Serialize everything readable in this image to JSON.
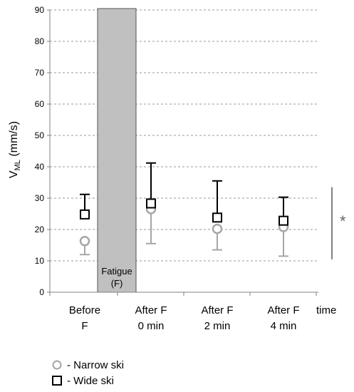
{
  "chart_data": {
    "type": "scatter",
    "ylabel_main": "V",
    "ylabel_sub": "ML",
    "ylabel_unit": " (mm/s)",
    "xlabel": "time",
    "ylim": [
      0,
      90
    ],
    "yticks": [
      0,
      10,
      20,
      30,
      40,
      50,
      60,
      70,
      80,
      90
    ],
    "grid": true,
    "categories": [
      {
        "line1": "Before",
        "line2": "F"
      },
      {
        "line1": "After F",
        "line2": "0 min"
      },
      {
        "line1": "After F",
        "line2": "2 min"
      },
      {
        "line1": "After F",
        "line2": "4 min"
      }
    ],
    "series": [
      {
        "name": "- Narrow ski",
        "marker": "circle",
        "color": "#a6a6a6",
        "values": [
          16.3,
          26.5,
          20.2,
          20.8
        ],
        "err_lower": [
          12.0,
          15.5,
          13.5,
          11.5
        ]
      },
      {
        "name": "- Wide ski",
        "marker": "square",
        "color": "#000000",
        "values": [
          24.8,
          28.3,
          23.8,
          22.8
        ],
        "err_upper": [
          31.2,
          41.2,
          35.5,
          30.3
        ]
      }
    ],
    "shaded_region": {
      "label_line1": "Fatigue",
      "label_line2": "(F)",
      "color": "#c0c0c0"
    },
    "significance": {
      "symbol": "*",
      "from": 10.5,
      "to": 33.5
    }
  }
}
